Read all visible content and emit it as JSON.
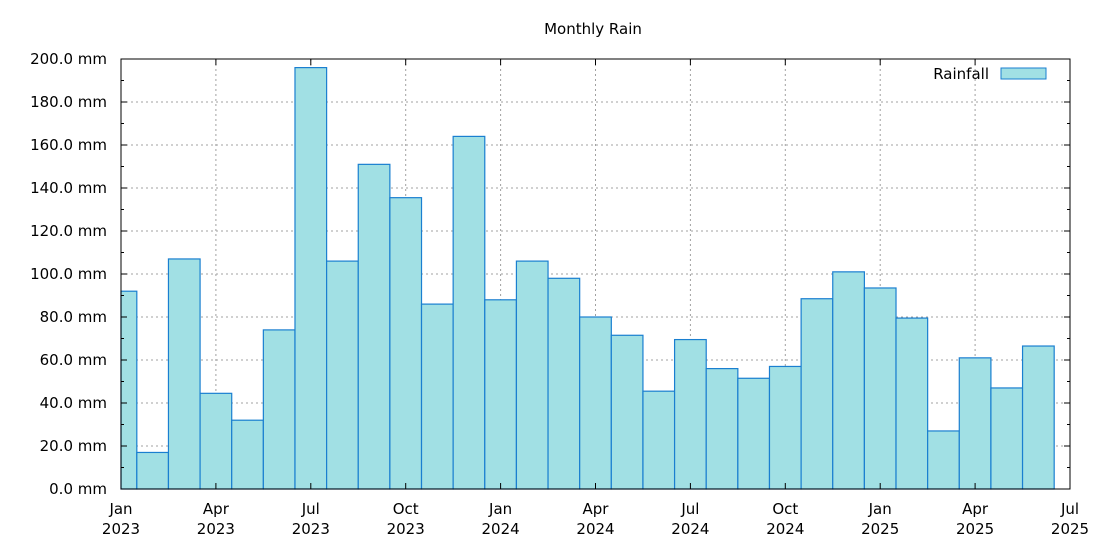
{
  "chart_data": {
    "type": "bar",
    "title": "Monthly Rain",
    "ylabel": "",
    "xlabel": "",
    "y_unit": "mm",
    "ylim": [
      0,
      200
    ],
    "y_ticks": [
      0,
      20,
      40,
      60,
      80,
      100,
      120,
      140,
      160,
      180,
      200
    ],
    "y_tick_labels": [
      "0.0 mm",
      "20.0 mm",
      "40.0 mm",
      "60.0 mm",
      "80.0 mm",
      "100.0 mm",
      "120.0 mm",
      "140.0 mm",
      "160.0 mm",
      "180.0 mm",
      "200.0 mm"
    ],
    "xlim": [
      "2023-01",
      "2025-07"
    ],
    "x_ticks": [
      {
        "date": "2023-01",
        "month": "Jan",
        "year": "2023"
      },
      {
        "date": "2023-04",
        "month": "Apr",
        "year": "2023"
      },
      {
        "date": "2023-07",
        "month": "Jul",
        "year": "2023"
      },
      {
        "date": "2023-10",
        "month": "Oct",
        "year": "2023"
      },
      {
        "date": "2024-01",
        "month": "Jan",
        "year": "2024"
      },
      {
        "date": "2024-04",
        "month": "Apr",
        "year": "2024"
      },
      {
        "date": "2024-07",
        "month": "Jul",
        "year": "2024"
      },
      {
        "date": "2024-10",
        "month": "Oct",
        "year": "2024"
      },
      {
        "date": "2025-01",
        "month": "Jan",
        "year": "2025"
      },
      {
        "date": "2025-04",
        "month": "Apr",
        "year": "2025"
      },
      {
        "date": "2025-07",
        "month": "Jul",
        "year": "2025"
      }
    ],
    "grid": true,
    "legend_position": "top-right",
    "bar_fill": "#a1e0e4",
    "bar_edge": "#1a7fd0",
    "categories": [
      "2023-01",
      "2023-02",
      "2023-03",
      "2023-04",
      "2023-05",
      "2023-06",
      "2023-07",
      "2023-08",
      "2023-09",
      "2023-10",
      "2023-11",
      "2023-12",
      "2024-01",
      "2024-02",
      "2024-03",
      "2024-04",
      "2024-05",
      "2024-06",
      "2024-07",
      "2024-08",
      "2024-09",
      "2024-10",
      "2024-11",
      "2024-12",
      "2025-01",
      "2025-02",
      "2025-03",
      "2025-04",
      "2025-05",
      "2025-06"
    ],
    "series": [
      {
        "name": "Rainfall",
        "values": [
          92,
          17,
          107,
          44.5,
          32,
          74,
          196,
          106,
          151,
          135.5,
          86,
          164,
          88,
          106,
          98,
          80,
          71.5,
          45.5,
          69.5,
          56,
          51.5,
          57,
          88.5,
          101,
          93.5,
          79.5,
          27,
          61,
          47,
          66.5
        ]
      }
    ]
  }
}
